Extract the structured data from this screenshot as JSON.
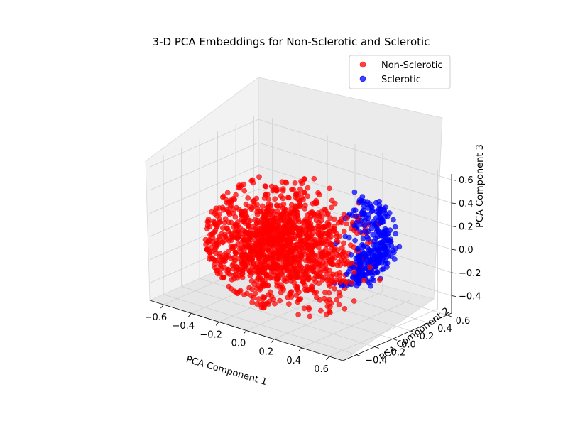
{
  "chart_data": {
    "type": "scatter",
    "projection": "3d",
    "title": "3-D PCA Embeddings for Non-Sclerotic and Sclerotic",
    "xlabel": "PCA Component 1",
    "ylabel": "PCA Component 2",
    "zlabel": "PCA Component 3",
    "xlim": [
      -0.7,
      0.7
    ],
    "ylim": [
      -0.55,
      0.65
    ],
    "zlim": [
      -0.55,
      0.65
    ],
    "x_ticks": [
      "−0.6",
      "−0.4",
      "−0.2",
      "0.0",
      "0.2",
      "0.4",
      "0.6"
    ],
    "y_ticks": [
      "−0.4",
      "−0.2",
      "0.0",
      "0.2",
      "0.4",
      "0.6"
    ],
    "z_ticks": [
      "−0.4",
      "−0.2",
      "0.0",
      "0.2",
      "0.4",
      "0.6"
    ],
    "grid": true,
    "legend_position": "top-right",
    "series": [
      {
        "name": "Non-Sclerotic",
        "color": "#ff0000",
        "approx_count": 1400,
        "distribution": "dense cloud centered near (-0.05, -0.05, 0.0), spread about 0.25 per axis"
      },
      {
        "name": "Sclerotic",
        "color": "#0000ff",
        "approx_count": 320,
        "distribution": "curved shell along the far side toward positive PCA Component 1, around (0.35, 0.3, 0.05)"
      }
    ]
  }
}
